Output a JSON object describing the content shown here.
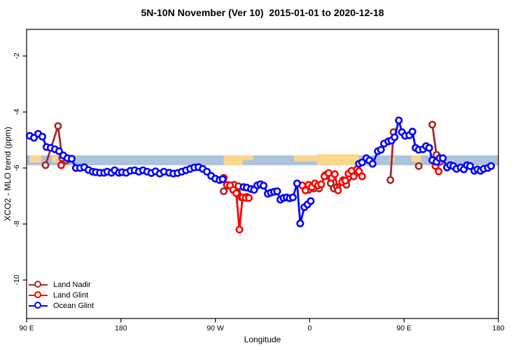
{
  "header": {
    "title": "5N-10N November (Ver 10)  2015-01-01 to 2020-12-18"
  },
  "colors": {
    "land_nadir": "#a52a2a",
    "land_glint": "#ff0000",
    "ocean_glint": "#0000ff",
    "map_ocean": "#adc2dd",
    "map_land": "#fbd78c",
    "axis": "#000000"
  },
  "chart_data": {
    "type": "line",
    "title": "5N-10N November (Ver 10)  2015-01-01 to 2020-12-18",
    "xlabel": "Longitude",
    "ylabel": "XCO2 - MLO trend (ppm)",
    "xlim": [
      90,
      540
    ],
    "ylim": [
      -11.4,
      -1.05
    ],
    "grid": false,
    "x_ticks": [
      {
        "lon": 90,
        "label": "90 E"
      },
      {
        "lon": 180,
        "label": "180"
      },
      {
        "lon": 270,
        "label": "90 W"
      },
      {
        "lon": 360,
        "label": "0"
      },
      {
        "lon": 450,
        "label": "90 E"
      },
      {
        "lon": 540,
        "label": "180"
      }
    ],
    "y_ticks": [
      {
        "value": -2,
        "label": "-2"
      },
      {
        "value": -4,
        "label": "-4"
      },
      {
        "value": -6,
        "label": "-6"
      },
      {
        "value": -8,
        "label": "-8"
      },
      {
        "value": -10,
        "label": "-10"
      }
    ],
    "map_strip": {
      "value_top": -5.55,
      "value_bottom": -5.9,
      "land_patches": [
        {
          "lon": [
            93,
            104
          ],
          "frac": [
            0,
            0.72
          ]
        },
        {
          "lon": [
            114,
            123
          ],
          "frac": [
            0.08,
            0.68
          ]
        },
        {
          "lon": [
            278,
            296
          ],
          "frac": [
            0,
            1
          ]
        },
        {
          "lon": [
            296,
            306
          ],
          "frac": [
            0,
            0.5
          ]
        },
        {
          "lon": [
            345,
            367
          ],
          "frac": [
            0,
            0.6
          ]
        },
        {
          "lon": [
            367,
            407
          ],
          "frac": [
            -0.12,
            1
          ]
        },
        {
          "lon": [
            436,
            441
          ],
          "frac": [
            0.15,
            0.6
          ]
        },
        {
          "lon": [
            457,
            466
          ],
          "frac": [
            0,
            0.65
          ]
        },
        {
          "lon": [
            477,
            487
          ],
          "frac": [
            0.1,
            0.65
          ]
        }
      ]
    },
    "legend": {
      "position": "bottom-left",
      "entries": [
        "Land Nadir",
        "Land Glint",
        "Ocean Glint"
      ]
    },
    "series": [
      {
        "name": "Land Nadir",
        "color": "#a52a2a",
        "segments": [
          [
            [
              108,
              -5.9
            ],
            [
              120,
              -4.5
            ],
            [
              124,
              -5.65
            ],
            [
              128,
              -5.73
            ]
          ],
          [
            [
              278,
              -6.83
            ],
            [
              288,
              -6.6
            ],
            [
              292,
              -6.65
            ],
            [
              295,
              -7.05
            ],
            [
              300,
              -7.03
            ]
          ],
          [
            [
              359,
              -6.78
            ],
            [
              364,
              -6.73
            ],
            [
              369,
              -6.73
            ],
            [
              375,
              -6.25
            ],
            [
              380,
              -6.55
            ],
            [
              383,
              -6.73
            ],
            [
              386,
              -6.68
            ],
            [
              392,
              -6.43
            ],
            [
              395,
              -6.6
            ],
            [
              403,
              -6.2
            ],
            [
              406,
              -6.15
            ]
          ],
          [
            [
              437,
              -6.43
            ],
            [
              440,
              -4.72
            ]
          ],
          [
            [
              464,
              -5.93
            ]
          ],
          [
            [
              477,
              -4.45
            ],
            [
              481,
              -5.53
            ],
            [
              484,
              -5.78
            ]
          ]
        ]
      },
      {
        "name": "Land Glint",
        "color": "#ff0000",
        "segments": [
          [
            [
              123,
              -5.9
            ]
          ],
          [
            [
              278,
              -6.35
            ],
            [
              281,
              -6.6
            ],
            [
              284,
              -6.62
            ],
            [
              287,
              -6.78
            ],
            [
              290,
              -6.9
            ],
            [
              293,
              -8.2
            ],
            [
              296,
              -7.05
            ],
            [
              299,
              -7.07
            ],
            [
              302,
              -7.07
            ]
          ],
          [
            [
              353,
              -6.62
            ],
            [
              356,
              -6.8
            ],
            [
              359,
              -6.6
            ],
            [
              362,
              -6.68
            ],
            [
              365,
              -6.55
            ],
            [
              368,
              -6.62
            ],
            [
              371,
              -6.58
            ],
            [
              374,
              -6.3
            ],
            [
              378,
              -6.18
            ],
            [
              381,
              -6.35
            ],
            [
              384,
              -6.22
            ],
            [
              387,
              -6.8
            ],
            [
              391,
              -6.5
            ],
            [
              394,
              -6.45
            ],
            [
              397,
              -6.2
            ],
            [
              400,
              -6.1
            ],
            [
              402,
              -6.3
            ],
            [
              405,
              -6.05
            ],
            [
              407,
              -6.12
            ],
            [
              410,
              -6.3
            ]
          ],
          [
            [
              480,
              -5.93
            ],
            [
              483,
              -6.12
            ]
          ]
        ]
      },
      {
        "name": "Ocean Glint",
        "color": "#0000ff",
        "segments": [
          [
            [
              93,
              -4.85
            ],
            [
              97,
              -4.92
            ],
            [
              101,
              -4.78
            ],
            [
              105,
              -4.88
            ],
            [
              109,
              -5.25
            ],
            [
              113,
              -5.28
            ],
            [
              117,
              -5.33
            ],
            [
              121,
              -5.4
            ],
            [
              125,
              -5.55
            ],
            [
              129,
              -5.65
            ],
            [
              133,
              -5.67
            ],
            [
              137,
              -6.0
            ],
            [
              141,
              -6.0
            ],
            [
              145,
              -5.97
            ],
            [
              149,
              -6.07
            ],
            [
              153,
              -6.13
            ],
            [
              156,
              -6.15
            ],
            [
              160,
              -6.17
            ],
            [
              164,
              -6.17
            ],
            [
              167,
              -6.13
            ],
            [
              171,
              -6.17
            ],
            [
              174,
              -6.08
            ],
            [
              178,
              -6.17
            ],
            [
              181,
              -6.15
            ],
            [
              185,
              -6.17
            ],
            [
              189,
              -6.1
            ],
            [
              193,
              -6.08
            ],
            [
              197,
              -6.13
            ],
            [
              201,
              -6.08
            ],
            [
              205,
              -6.13
            ],
            [
              209,
              -6.18
            ],
            [
              213,
              -6.12
            ],
            [
              217,
              -6.2
            ],
            [
              221,
              -6.13
            ],
            [
              226,
              -6.17
            ],
            [
              230,
              -6.2
            ],
            [
              234,
              -6.18
            ],
            [
              238,
              -6.13
            ],
            [
              242,
              -6.08
            ],
            [
              246,
              -6.03
            ],
            [
              250,
              -5.98
            ],
            [
              254,
              -5.97
            ],
            [
              258,
              -6.03
            ],
            [
              262,
              -6.13
            ],
            [
              266,
              -6.28
            ],
            [
              270,
              -6.38
            ],
            [
              274,
              -6.43
            ],
            [
              277,
              -6.4
            ]
          ],
          [
            [
              297,
              -6.68
            ],
            [
              300,
              -6.7
            ],
            [
              304,
              -6.75
            ],
            [
              307,
              -6.78
            ],
            [
              310,
              -6.62
            ],
            [
              313,
              -6.58
            ],
            [
              316,
              -6.63
            ],
            [
              320,
              -6.92
            ],
            [
              323,
              -6.88
            ],
            [
              326,
              -6.85
            ],
            [
              329,
              -6.83
            ],
            [
              332,
              -7.13
            ],
            [
              335,
              -7.07
            ],
            [
              338,
              -7.05
            ],
            [
              341,
              -7.08
            ],
            [
              344,
              -7.05
            ],
            [
              348,
              -6.55
            ],
            [
              351,
              -7.98
            ],
            [
              355,
              -7.4
            ],
            [
              358,
              -7.3
            ],
            [
              361,
              -7.18
            ]
          ],
          [
            [
              407,
              -5.85
            ],
            [
              410,
              -5.8
            ],
            [
              414,
              -5.65
            ],
            [
              417,
              -5.73
            ],
            [
              420,
              -5.85
            ],
            [
              425,
              -5.4
            ],
            [
              428,
              -5.35
            ],
            [
              431,
              -5.13
            ],
            [
              435,
              -5.05
            ],
            [
              438,
              -5.02
            ],
            [
              441,
              -4.9
            ],
            [
              445,
              -4.3
            ],
            [
              448,
              -4.72
            ],
            [
              451,
              -4.85
            ],
            [
              455,
              -4.83
            ],
            [
              458,
              -4.7
            ],
            [
              461,
              -5.28
            ],
            [
              464,
              -5.35
            ],
            [
              468,
              -5.33
            ],
            [
              471,
              -5.22
            ],
            [
              474,
              -5.28
            ],
            [
              477,
              -5.72
            ],
            [
              481,
              -5.78
            ],
            [
              484,
              -5.65
            ],
            [
              487,
              -5.65
            ],
            [
              491,
              -5.98
            ],
            [
              494,
              -5.9
            ],
            [
              497,
              -5.93
            ],
            [
              500,
              -6.03
            ],
            [
              504,
              -5.98
            ],
            [
              507,
              -6.05
            ],
            [
              510,
              -5.9
            ],
            [
              513,
              -5.93
            ],
            [
              517,
              -6.1
            ],
            [
              520,
              -6.05
            ],
            [
              523,
              -6.1
            ],
            [
              526,
              -6.03
            ],
            [
              530,
              -6.0
            ],
            [
              533,
              -5.93
            ]
          ]
        ]
      }
    ]
  }
}
